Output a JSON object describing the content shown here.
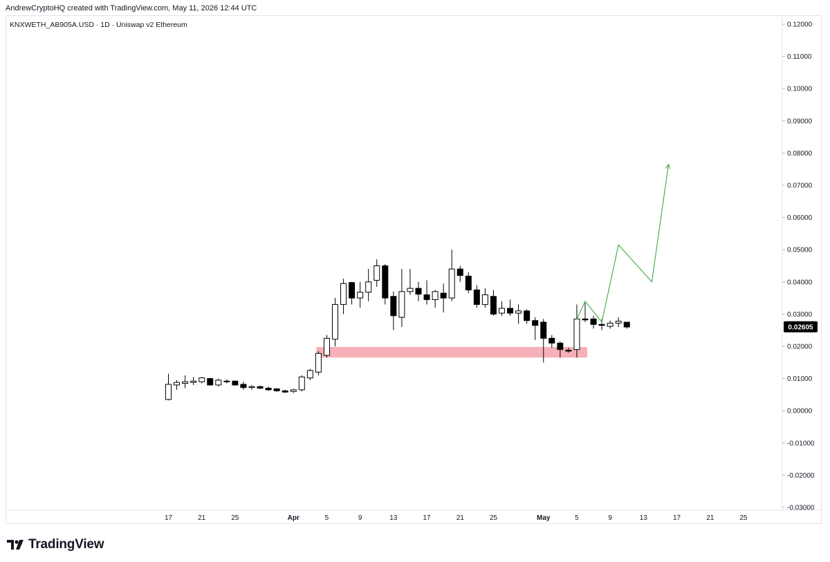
{
  "header": {
    "attribution": "AndrewCryptoHQ created with TradingView.com, May 11, 2026 12:44 UTC"
  },
  "chart": {
    "symbol_label": "KNXWETH_AB905A.USD · 1D · Uniswap v2 Ethereum",
    "last_price_label": "0.02605"
  },
  "footer": {
    "brand": "TradingView"
  },
  "colors": {
    "candle_up_fill": "#ffffff",
    "candle_down_fill": "#000000",
    "candle_border": "#000000",
    "zone_fill": "#f7b0b7",
    "projection_line": "#4caf50",
    "grid": "#f0f3fa",
    "last_price_bg": "#000000"
  },
  "chart_data": {
    "type": "candlestick",
    "title": "",
    "xlabel": "",
    "ylabel": "",
    "ylim": [
      -0.03,
      0.12
    ],
    "y_ticks": [
      "0.12000",
      "0.11000",
      "0.10000",
      "0.09000",
      "0.08000",
      "0.07000",
      "0.06000",
      "0.05000",
      "0.04000",
      "0.03000",
      "0.02000",
      "0.01000",
      "0.00000",
      "-0.01000",
      "-0.02000",
      "-0.03000"
    ],
    "x_ticks": [
      {
        "label": "17",
        "day": 0
      },
      {
        "label": "21",
        "day": 4
      },
      {
        "label": "25",
        "day": 8
      },
      {
        "label": "Apr",
        "day": 15
      },
      {
        "label": "5",
        "day": 19
      },
      {
        "label": "9",
        "day": 23
      },
      {
        "label": "13",
        "day": 27
      },
      {
        "label": "17",
        "day": 31
      },
      {
        "label": "21",
        "day": 35
      },
      {
        "label": "25",
        "day": 39
      },
      {
        "label": "May",
        "day": 45
      },
      {
        "label": "5",
        "day": 49
      },
      {
        "label": "9",
        "day": 53
      },
      {
        "label": "13",
        "day": 57
      },
      {
        "label": "17",
        "day": 61
      },
      {
        "label": "21",
        "day": 65
      },
      {
        "label": "25",
        "day": 69
      }
    ],
    "grid": false,
    "candles": [
      {
        "day": 0,
        "o": 0.0035,
        "h": 0.0115,
        "l": 0.0032,
        "c": 0.0082
      },
      {
        "day": 1,
        "o": 0.008,
        "h": 0.0095,
        "l": 0.0065,
        "c": 0.0088
      },
      {
        "day": 2,
        "o": 0.0085,
        "h": 0.011,
        "l": 0.007,
        "c": 0.009
      },
      {
        "day": 3,
        "o": 0.0088,
        "h": 0.0105,
        "l": 0.008,
        "c": 0.0092
      },
      {
        "day": 4,
        "o": 0.009,
        "h": 0.0105,
        "l": 0.0085,
        "c": 0.0102
      },
      {
        "day": 5,
        "o": 0.01,
        "h": 0.0102,
        "l": 0.0078,
        "c": 0.008
      },
      {
        "day": 6,
        "o": 0.008,
        "h": 0.01,
        "l": 0.0075,
        "c": 0.0095
      },
      {
        "day": 7,
        "o": 0.0092,
        "h": 0.0098,
        "l": 0.0085,
        "c": 0.009
      },
      {
        "day": 8,
        "o": 0.0092,
        "h": 0.0094,
        "l": 0.0078,
        "c": 0.008
      },
      {
        "day": 9,
        "o": 0.0082,
        "h": 0.009,
        "l": 0.0065,
        "c": 0.0072
      },
      {
        "day": 10,
        "o": 0.0072,
        "h": 0.008,
        "l": 0.0065,
        "c": 0.0075
      },
      {
        "day": 11,
        "o": 0.0075,
        "h": 0.0078,
        "l": 0.0068,
        "c": 0.007
      },
      {
        "day": 12,
        "o": 0.007,
        "h": 0.0075,
        "l": 0.0062,
        "c": 0.0065
      },
      {
        "day": 13,
        "o": 0.0068,
        "h": 0.007,
        "l": 0.0058,
        "c": 0.0062
      },
      {
        "day": 14,
        "o": 0.0062,
        "h": 0.0065,
        "l": 0.0055,
        "c": 0.0058
      },
      {
        "day": 15,
        "o": 0.006,
        "h": 0.0068,
        "l": 0.0055,
        "c": 0.0065
      },
      {
        "day": 16,
        "o": 0.0065,
        "h": 0.011,
        "l": 0.006,
        "c": 0.0105
      },
      {
        "day": 17,
        "o": 0.0102,
        "h": 0.013,
        "l": 0.0095,
        "c": 0.0125
      },
      {
        "day": 18,
        "o": 0.012,
        "h": 0.0185,
        "l": 0.011,
        "c": 0.0178
      },
      {
        "day": 19,
        "o": 0.0172,
        "h": 0.0235,
        "l": 0.0165,
        "c": 0.0225
      },
      {
        "day": 20,
        "o": 0.0222,
        "h": 0.035,
        "l": 0.02,
        "c": 0.033
      },
      {
        "day": 21,
        "o": 0.033,
        "h": 0.041,
        "l": 0.03,
        "c": 0.0395
      },
      {
        "day": 22,
        "o": 0.0398,
        "h": 0.04,
        "l": 0.033,
        "c": 0.035
      },
      {
        "day": 23,
        "o": 0.035,
        "h": 0.04,
        "l": 0.032,
        "c": 0.0368
      },
      {
        "day": 24,
        "o": 0.0368,
        "h": 0.044,
        "l": 0.034,
        "c": 0.04
      },
      {
        "day": 25,
        "o": 0.0405,
        "h": 0.047,
        "l": 0.0385,
        "c": 0.045
      },
      {
        "day": 26,
        "o": 0.045,
        "h": 0.0455,
        "l": 0.033,
        "c": 0.035
      },
      {
        "day": 27,
        "o": 0.0355,
        "h": 0.037,
        "l": 0.025,
        "c": 0.0295
      },
      {
        "day": 28,
        "o": 0.029,
        "h": 0.044,
        "l": 0.026,
        "c": 0.037
      },
      {
        "day": 29,
        "o": 0.037,
        "h": 0.044,
        "l": 0.036,
        "c": 0.038
      },
      {
        "day": 30,
        "o": 0.038,
        "h": 0.04,
        "l": 0.034,
        "c": 0.0362
      },
      {
        "day": 31,
        "o": 0.036,
        "h": 0.0405,
        "l": 0.033,
        "c": 0.0345
      },
      {
        "day": 32,
        "o": 0.0345,
        "h": 0.0375,
        "l": 0.032,
        "c": 0.037
      },
      {
        "day": 33,
        "o": 0.0365,
        "h": 0.0395,
        "l": 0.0305,
        "c": 0.035
      },
      {
        "day": 34,
        "o": 0.035,
        "h": 0.05,
        "l": 0.034,
        "c": 0.044
      },
      {
        "day": 35,
        "o": 0.044,
        "h": 0.045,
        "l": 0.04,
        "c": 0.042
      },
      {
        "day": 36,
        "o": 0.0418,
        "h": 0.043,
        "l": 0.0365,
        "c": 0.0375
      },
      {
        "day": 37,
        "o": 0.0375,
        "h": 0.039,
        "l": 0.032,
        "c": 0.033
      },
      {
        "day": 38,
        "o": 0.033,
        "h": 0.038,
        "l": 0.032,
        "c": 0.036
      },
      {
        "day": 39,
        "o": 0.0355,
        "h": 0.0375,
        "l": 0.0295,
        "c": 0.03
      },
      {
        "day": 40,
        "o": 0.0303,
        "h": 0.034,
        "l": 0.0295,
        "c": 0.0318
      },
      {
        "day": 41,
        "o": 0.0318,
        "h": 0.0345,
        "l": 0.0295,
        "c": 0.0303
      },
      {
        "day": 42,
        "o": 0.0303,
        "h": 0.033,
        "l": 0.027,
        "c": 0.031
      },
      {
        "day": 43,
        "o": 0.031,
        "h": 0.0315,
        "l": 0.027,
        "c": 0.028
      },
      {
        "day": 44,
        "o": 0.028,
        "h": 0.029,
        "l": 0.022,
        "c": 0.0265
      },
      {
        "day": 45,
        "o": 0.0275,
        "h": 0.0285,
        "l": 0.015,
        "c": 0.0225
      },
      {
        "day": 46,
        "o": 0.0225,
        "h": 0.0235,
        "l": 0.0195,
        "c": 0.021
      },
      {
        "day": 47,
        "o": 0.021,
        "h": 0.0215,
        "l": 0.0165,
        "c": 0.019
      },
      {
        "day": 48,
        "o": 0.0188,
        "h": 0.0195,
        "l": 0.018,
        "c": 0.0185
      },
      {
        "day": 49,
        "o": 0.019,
        "h": 0.033,
        "l": 0.0165,
        "c": 0.0285
      },
      {
        "day": 50,
        "o": 0.0285,
        "h": 0.0335,
        "l": 0.0275,
        "c": 0.0282
      },
      {
        "day": 51,
        "o": 0.0285,
        "h": 0.0295,
        "l": 0.0255,
        "c": 0.0268
      },
      {
        "day": 52,
        "o": 0.0268,
        "h": 0.0285,
        "l": 0.025,
        "c": 0.0265
      },
      {
        "day": 53,
        "o": 0.0262,
        "h": 0.028,
        "l": 0.0255,
        "c": 0.0272
      },
      {
        "day": 54,
        "o": 0.0272,
        "h": 0.029,
        "l": 0.026,
        "c": 0.0278
      },
      {
        "day": 55,
        "o": 0.0275,
        "h": 0.0275,
        "l": 0.0255,
        "c": 0.026
      }
    ],
    "support_zone": {
      "day_start": 18,
      "day_end": 50,
      "y_low": 0.0165,
      "y_high": 0.0198
    },
    "projection_path": [
      {
        "day": 49,
        "y": 0.0285
      },
      {
        "day": 50,
        "y": 0.034
      },
      {
        "day": 52,
        "y": 0.0275
      },
      {
        "day": 54,
        "y": 0.0515
      },
      {
        "day": 58,
        "y": 0.04
      },
      {
        "day": 60,
        "y": 0.0765
      }
    ],
    "last_price": 0.02605
  }
}
